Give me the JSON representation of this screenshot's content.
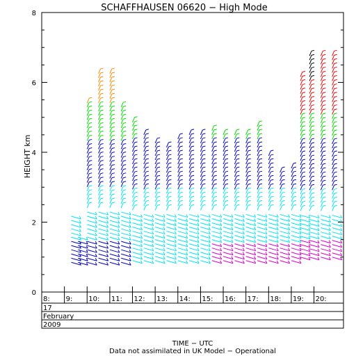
{
  "title": "SCHAFFHAUSEN 06620 − High Mode",
  "footer": {
    "xlabel": "TIME − UTC",
    "note": "Data not assimilated in UK Model − Operational"
  },
  "date_rows": [
    "17",
    "February",
    "2009"
  ],
  "colors": {
    "below_2km_rain": "#0000cc",
    "lower": "#00e5ee",
    "mid": "#0000cc",
    "upper_green": "#00dd00",
    "upper_orange": "#ff8800",
    "top_red": "#ee0000",
    "top_black": "#000000",
    "low_magenta": "#dd00cc",
    "axes": "#000000"
  },
  "chart_data": {
    "type": "scatter",
    "title": "SCHAFFHAUSEN 06620 − High Mode",
    "xlabel": "TIME − UTC",
    "ylabel": "HEIGHT km",
    "x_unit": "hour UTC",
    "xlim": [
      8.0,
      21.3
    ],
    "ylim": [
      0,
      8
    ],
    "y_ticks": [
      0,
      2,
      4,
      6,
      8
    ],
    "x_tick_labels": [
      "8:",
      "9:",
      "10:",
      "11:",
      "12:",
      "13:",
      "14:",
      "15:",
      "16:",
      "17:",
      "18:",
      "19:",
      "20:"
    ],
    "x_tick_hours": [
      8,
      9,
      10,
      11,
      12,
      13,
      14,
      15,
      16,
      17,
      18,
      19,
      20
    ],
    "grid": false,
    "profiles_note": "vertical wind-barb profiles; min/max height in km per profile time",
    "profiles": [
      {
        "time": 9.3,
        "min_km": 0.85,
        "max_km": 2.2
      },
      {
        "time": 9.6,
        "min_km": 0.85,
        "max_km": 1.6
      },
      {
        "time": 10.0,
        "min_km": 0.85,
        "max_km": 5.5
      },
      {
        "time": 10.5,
        "min_km": 0.85,
        "max_km": 6.3
      },
      {
        "time": 11.0,
        "min_km": 0.85,
        "max_km": 6.3
      },
      {
        "time": 11.5,
        "min_km": 0.85,
        "max_km": 5.3
      },
      {
        "time": 12.0,
        "min_km": 0.9,
        "max_km": 4.9
      },
      {
        "time": 12.5,
        "min_km": 0.9,
        "max_km": 4.5
      },
      {
        "time": 13.0,
        "min_km": 0.9,
        "max_km": 4.3
      },
      {
        "time": 13.5,
        "min_km": 0.9,
        "max_km": 4.2
      },
      {
        "time": 14.0,
        "min_km": 0.9,
        "max_km": 4.4
      },
      {
        "time": 14.5,
        "min_km": 0.9,
        "max_km": 4.5
      },
      {
        "time": 15.0,
        "min_km": 0.9,
        "max_km": 4.5
      },
      {
        "time": 15.5,
        "min_km": 0.9,
        "max_km": 4.7
      },
      {
        "time": 16.0,
        "min_km": 0.9,
        "max_km": 4.6
      },
      {
        "time": 16.5,
        "min_km": 0.9,
        "max_km": 4.6
      },
      {
        "time": 17.0,
        "min_km": 0.9,
        "max_km": 4.6
      },
      {
        "time": 17.5,
        "min_km": 0.9,
        "max_km": 4.8
      },
      {
        "time": 18.0,
        "min_km": 0.9,
        "max_km": 3.9
      },
      {
        "time": 18.5,
        "min_km": 0.9,
        "max_km": 3.5
      },
      {
        "time": 19.0,
        "min_km": 0.9,
        "max_km": 3.6
      },
      {
        "time": 19.4,
        "min_km": 1.0,
        "max_km": 6.2
      },
      {
        "time": 19.8,
        "min_km": 1.0,
        "max_km": 6.8
      },
      {
        "time": 20.3,
        "min_km": 1.0,
        "max_km": 6.8
      },
      {
        "time": 20.8,
        "min_km": 1.0,
        "max_km": 6.8
      }
    ]
  }
}
